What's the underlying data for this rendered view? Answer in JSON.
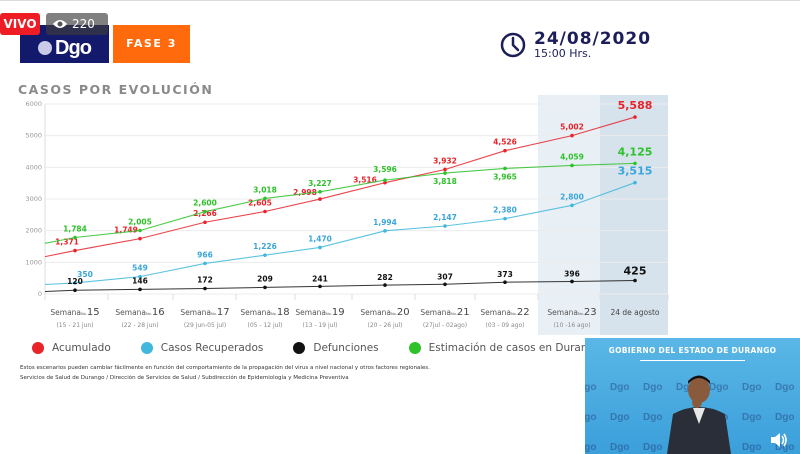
{
  "overlay": {
    "live_badge": "VIVO",
    "viewers": "220",
    "eye_icon": "eye-icon"
  },
  "header": {
    "logo_text": "Dgo",
    "phase": "FASE 3",
    "date": "24/08/2020",
    "time": "15:00 Hrs.",
    "clock_icon": "clock-icon"
  },
  "colors": {
    "acumulado": "#e8232a",
    "recuperados": "#3fb8dc",
    "defunciones": "#111111",
    "estimacion": "#2ec22a",
    "phase_badge": "#ff6a0c",
    "logo_bg": "#141a6b",
    "highlight": "#dce6ef"
  },
  "chart_data": {
    "type": "line",
    "title": "CASOS POR EVOLUCIÓN",
    "ylim": [
      0,
      6000
    ],
    "yticks": [
      "0",
      "1000",
      "2000",
      "3000",
      "4000",
      "5000",
      "6000"
    ],
    "categories": [
      {
        "week": "15",
        "range": "(15 - 21 jun)"
      },
      {
        "week": "16",
        "range": "(22 - 28 jun)"
      },
      {
        "week": "17",
        "range": "(29 jun-05 jul)"
      },
      {
        "week": "18",
        "range": "(05 - 12 jul)"
      },
      {
        "week": "19",
        "range": "(13 - 19 jul)"
      },
      {
        "week": "20",
        "range": "(20 - 26 jul)"
      },
      {
        "week": "21",
        "range": "(27jul - 02ago)"
      },
      {
        "week": "22",
        "range": "(03 - 09 ago)"
      },
      {
        "week": "23",
        "range": "(10 -16 ago)"
      },
      {
        "week": "",
        "range": "",
        "label": "24 de agosto"
      }
    ],
    "week_prefix": "Semana",
    "week_no": "No.",
    "grid": true,
    "highlighted_categories": [
      8,
      9
    ],
    "series": [
      {
        "name": "Acumulado",
        "key": "acumulado",
        "values": [
          1371,
          1749,
          2266,
          2605,
          2998,
          3516,
          3932,
          4526,
          5002,
          5588
        ],
        "labels": [
          "1,371",
          "1,749",
          "2,266",
          "2,605",
          "2,998",
          "3,516",
          "3,932",
          "4,526",
          "5,002",
          "5,588"
        ]
      },
      {
        "name": "Casos Recuperados",
        "key": "recuperados",
        "values": [
          350,
          549,
          966,
          1226,
          1470,
          1994,
          2147,
          2380,
          2800,
          3515
        ],
        "labels": [
          "350",
          "549",
          "966",
          "1,226",
          "1,470",
          "1,994",
          "2,147",
          "2,380",
          "2,800",
          "3,515"
        ]
      },
      {
        "name": "Defunciones",
        "key": "defunciones",
        "values": [
          120,
          146,
          172,
          209,
          241,
          282,
          307,
          373,
          396,
          425
        ],
        "labels": [
          "120",
          "146",
          "172",
          "209",
          "241",
          "282",
          "307",
          "373",
          "396",
          "425"
        ]
      },
      {
        "name": "Estimación de casos en Durango",
        "key": "estimacion",
        "values": [
          1784,
          2005,
          2600,
          3018,
          3227,
          3596,
          3818,
          3965,
          4059,
          4125
        ],
        "labels": [
          "1,784",
          "2,005",
          "2,600",
          "3,018",
          "3,227",
          "3,596",
          "3,818",
          "3,965",
          "4,059",
          "4,125"
        ]
      }
    ]
  },
  "legend": [
    {
      "label": "Acumulado",
      "key": "acumulado"
    },
    {
      "label": "Casos Recuperados",
      "key": "recuperados"
    },
    {
      "label": "Defunciones",
      "key": "defunciones"
    },
    {
      "label": "Estimación de casos en Durango",
      "key": "estimacion"
    }
  ],
  "footer": {
    "note": "Estos escenarios pueden cambiar fácilmente en función del comportamiento de la propagación del virus a nivel nacional y otros factores regionales.",
    "source": "Servicios de Salud de Durango / Dirección de Servicios de Salud / Subdirección de Epidemiología y Medicina Preventiva"
  },
  "video": {
    "title": "GOBIERNO DEL ESTADO DE DURANGO",
    "pattern_text": "Dgo",
    "speaker_icon": "speaker-icon"
  }
}
